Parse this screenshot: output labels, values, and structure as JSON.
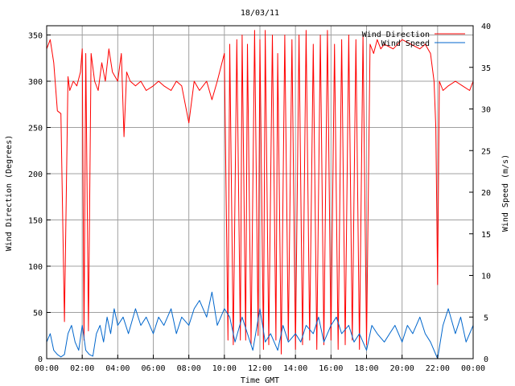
{
  "chart_data": {
    "type": "line",
    "title": "18/03/11",
    "xlabel": "Time GMT",
    "ylabel_left": "Wind Direction (Degrees)",
    "ylabel_right": "Wind Speed (m/s)",
    "x_ticks": [
      "00:00",
      "02:00",
      "04:00",
      "06:00",
      "08:00",
      "10:00",
      "12:00",
      "14:00",
      "16:00",
      "18:00",
      "20:00",
      "22:00",
      "00:00"
    ],
    "xlim_hours": [
      0,
      24
    ],
    "ylim_left": [
      0,
      360
    ],
    "left_ticks": [
      0,
      50,
      100,
      150,
      200,
      250,
      300,
      350
    ],
    "ylim_right": [
      0,
      40
    ],
    "right_ticks": [
      0,
      5,
      10,
      15,
      20,
      25,
      30,
      35,
      40
    ],
    "grid": true,
    "legend_position": "top-right",
    "series": [
      {
        "name": "Wind Direction",
        "axis": "left",
        "color": "#ff0000",
        "x_hours": [
          0,
          0.2,
          0.4,
          0.6,
          0.8,
          1.0,
          1.2,
          1.3,
          1.5,
          1.7,
          1.9,
          2.0,
          2.1,
          2.2,
          2.35,
          2.5,
          2.7,
          2.9,
          3.1,
          3.3,
          3.5,
          3.7,
          4.0,
          4.2,
          4.35,
          4.5,
          4.7,
          5.0,
          5.3,
          5.6,
          6.0,
          6.3,
          6.6,
          7.0,
          7.3,
          7.6,
          8.0,
          8.3,
          8.6,
          9.0,
          9.3,
          9.6,
          10.0,
          10.2,
          10.3,
          10.5,
          10.7,
          10.9,
          11.0,
          11.2,
          11.3,
          11.5,
          11.7,
          11.9,
          12.0,
          12.2,
          12.3,
          12.5,
          12.7,
          12.9,
          13.0,
          13.2,
          13.4,
          13.6,
          13.8,
          14.0,
          14.2,
          14.4,
          14.6,
          14.8,
          15.0,
          15.2,
          15.4,
          15.6,
          15.8,
          16.0,
          16.2,
          16.4,
          16.6,
          16.8,
          17.0,
          17.2,
          17.4,
          17.6,
          17.8,
          18.0,
          18.2,
          18.4,
          18.6,
          18.8,
          19.0,
          19.5,
          20.0,
          20.5,
          21.0,
          21.3,
          21.6,
          21.8,
          21.9,
          22.0,
          22.1,
          22.3,
          22.6,
          23.0,
          23.4,
          23.8,
          24.0
        ],
        "values": [
          335,
          345,
          320,
          268,
          265,
          40,
          305,
          290,
          300,
          295,
          310,
          335,
          20,
          330,
          30,
          330,
          300,
          290,
          320,
          300,
          335,
          310,
          300,
          330,
          240,
          310,
          300,
          295,
          300,
          290,
          295,
          300,
          295,
          290,
          300,
          295,
          255,
          300,
          290,
          300,
          280,
          300,
          330,
          20,
          340,
          15,
          345,
          20,
          350,
          20,
          340,
          15,
          355,
          25,
          345,
          10,
          355,
          15,
          350,
          20,
          330,
          5,
          350,
          20,
          345,
          10,
          350,
          15,
          355,
          20,
          340,
          10,
          350,
          15,
          355,
          20,
          340,
          10,
          345,
          15,
          350,
          20,
          345,
          10,
          350,
          15,
          340,
          330,
          345,
          335,
          340,
          335,
          345,
          340,
          335,
          340,
          330,
          300,
          250,
          80,
          300,
          290,
          295,
          300,
          295,
          290,
          300
        ]
      },
      {
        "name": "Wind Speed",
        "axis": "right",
        "color": "#0066cc",
        "x_hours": [
          0,
          0.2,
          0.4,
          0.6,
          0.8,
          1.0,
          1.2,
          1.4,
          1.6,
          1.8,
          2.0,
          2.2,
          2.4,
          2.6,
          2.8,
          3.0,
          3.2,
          3.4,
          3.6,
          3.8,
          4.0,
          4.3,
          4.6,
          5.0,
          5.3,
          5.6,
          6.0,
          6.3,
          6.6,
          7.0,
          7.3,
          7.6,
          8.0,
          8.3,
          8.6,
          9.0,
          9.3,
          9.6,
          10.0,
          10.3,
          10.6,
          11.0,
          11.3,
          11.6,
          12.0,
          12.3,
          12.6,
          13.0,
          13.3,
          13.6,
          14.0,
          14.3,
          14.6,
          15.0,
          15.3,
          15.6,
          16.0,
          16.3,
          16.6,
          17.0,
          17.3,
          17.6,
          18.0,
          18.3,
          18.6,
          19.0,
          19.3,
          19.6,
          20.0,
          20.3,
          20.6,
          21.0,
          21.3,
          21.6,
          22.0,
          22.3,
          22.6,
          23.0,
          23.3,
          23.6,
          24.0
        ],
        "values": [
          2,
          3,
          1,
          0.5,
          0.2,
          0.5,
          3,
          4,
          2,
          1,
          4,
          1,
          0.5,
          0.3,
          3,
          4,
          2,
          5,
          3,
          6,
          4,
          5,
          3,
          6,
          4,
          5,
          3,
          5,
          4,
          6,
          3,
          5,
          4,
          6,
          7,
          5,
          8,
          4,
          6,
          5,
          2,
          5,
          3,
          1,
          6,
          2,
          3,
          1,
          4,
          2,
          3,
          2,
          4,
          3,
          5,
          2,
          4,
          5,
          3,
          4,
          2,
          3,
          1,
          4,
          3,
          2,
          3,
          4,
          2,
          4,
          3,
          5,
          3,
          2,
          0,
          4,
          6,
          3,
          5,
          2,
          4
        ]
      }
    ]
  }
}
